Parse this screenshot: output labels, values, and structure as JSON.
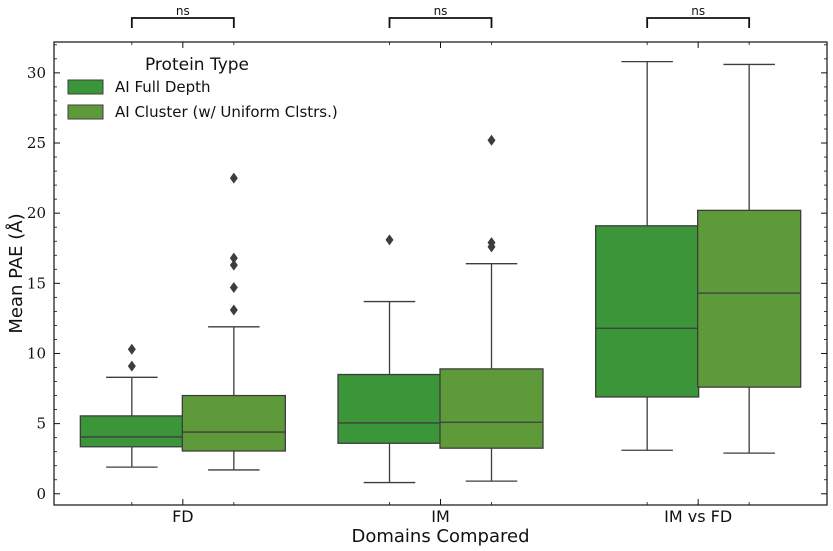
{
  "chart_data": {
    "type": "box",
    "xlabel": "Domains Compared",
    "ylabel": "Mean PAE (Å)",
    "ylim": [
      -0.8,
      32.2
    ],
    "yticks": [
      0,
      5,
      10,
      15,
      20,
      25,
      30
    ],
    "categories": [
      "FD",
      "IM",
      "IM vs FD"
    ],
    "legend": {
      "title": "Protein Type",
      "placement": "top-left",
      "entries": [
        "AI Full Depth",
        "AI Cluster (w/ Uniform Clstrs.)"
      ]
    },
    "colors": {
      "series0": "#3a9638",
      "series1": "#5f9a3a",
      "line": "#3d3d3d"
    },
    "series": [
      {
        "name": "AI Full Depth",
        "boxes": [
          {
            "category": "FD",
            "whislo": 1.9,
            "q1": 3.35,
            "med": 4.05,
            "q3": 5.55,
            "whishi": 8.3,
            "fliers": [
              9.1,
              10.3
            ]
          },
          {
            "category": "IM",
            "whislo": 0.8,
            "q1": 3.6,
            "med": 5.05,
            "q3": 8.5,
            "whishi": 13.7,
            "fliers": [
              18.1
            ]
          },
          {
            "category": "IM vs FD",
            "whislo": 3.1,
            "q1": 6.9,
            "med": 11.8,
            "q3": 19.1,
            "whishi": 30.8,
            "fliers": []
          }
        ]
      },
      {
        "name": "AI Cluster (w/ Uniform Clstrs.)",
        "boxes": [
          {
            "category": "FD",
            "whislo": 1.7,
            "q1": 3.05,
            "med": 4.4,
            "q3": 7.0,
            "whishi": 11.9,
            "fliers": [
              13.1,
              14.7,
              16.3,
              16.8,
              22.5
            ]
          },
          {
            "category": "IM",
            "whislo": 0.9,
            "q1": 3.25,
            "med": 5.1,
            "q3": 8.9,
            "whishi": 16.4,
            "fliers": [
              17.6,
              17.9,
              25.2
            ]
          },
          {
            "category": "IM vs FD",
            "whislo": 2.9,
            "q1": 7.6,
            "med": 14.3,
            "q3": 20.2,
            "whishi": 30.6,
            "fliers": []
          }
        ]
      }
    ],
    "annotations": [
      {
        "category": "FD",
        "text": "ns"
      },
      {
        "category": "IM",
        "text": "ns"
      },
      {
        "category": "IM vs FD",
        "text": "ns"
      }
    ]
  }
}
